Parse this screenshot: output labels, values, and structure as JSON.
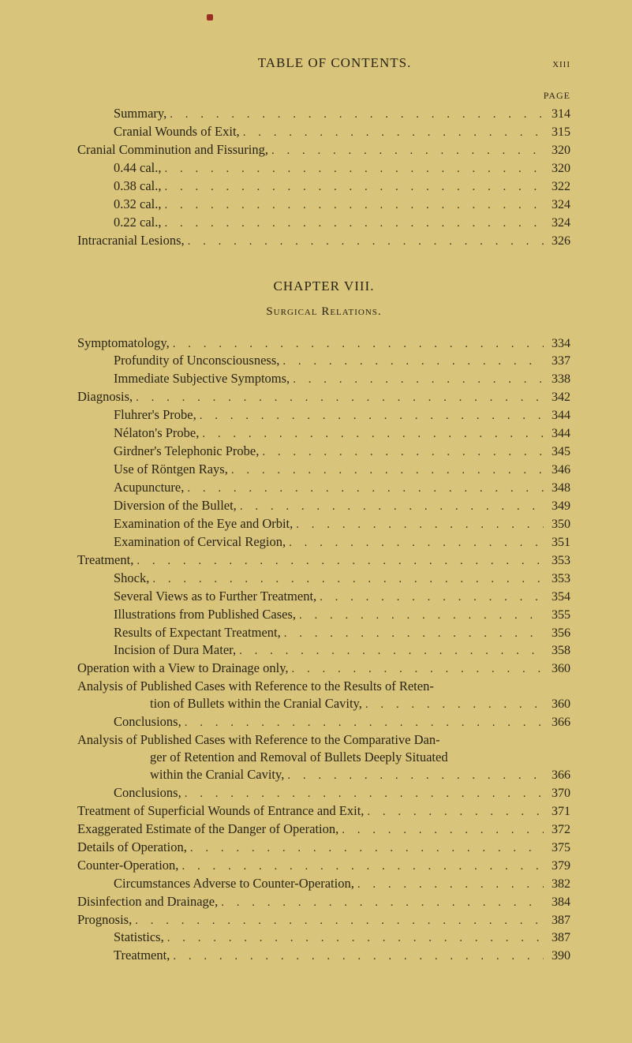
{
  "colors": {
    "page_bg": "#d8c47a",
    "text": "#2a2414",
    "dot": "#3a341f",
    "marker": "#9b2d25"
  },
  "typography": {
    "body_font": "Times New Roman",
    "body_size_pt": 12,
    "running_head_size_pt": 13,
    "chapter_head_size_pt": 13,
    "small_caps_size_pt": 11
  },
  "running_head": {
    "left": "TABLE OF CONTENTS.",
    "right": "xiii"
  },
  "page_label": "PAGE",
  "section_a": [
    {
      "indent": 1,
      "label": "Summary,",
      "page": "314"
    },
    {
      "indent": 1,
      "label": "Cranial Wounds of Exit,",
      "page": "315"
    },
    {
      "indent": 0,
      "label": "Cranial Comminution and Fissuring,",
      "page": "320"
    },
    {
      "indent": 1,
      "label": "0.44 cal.,",
      "page": "320"
    },
    {
      "indent": 1,
      "label": "0.38 cal.,",
      "page": "322"
    },
    {
      "indent": 1,
      "label": "0.32 cal.,",
      "page": "324"
    },
    {
      "indent": 1,
      "label": "0.22 cal.,",
      "page": "324"
    },
    {
      "indent": 0,
      "label": "Intracranial Lesions,",
      "page": "326"
    }
  ],
  "chapter": {
    "title": "CHAPTER VIII.",
    "subtitle": "Surgical Relations."
  },
  "section_b": [
    {
      "indent": 0,
      "label": "Symptomatology,",
      "page": "334"
    },
    {
      "indent": 1,
      "label": "Profundity of Unconsciousness,",
      "page": "337"
    },
    {
      "indent": 1,
      "label": "Immediate Subjective Symptoms,",
      "page": "338"
    },
    {
      "indent": 0,
      "label": "Diagnosis,",
      "page": "342"
    },
    {
      "indent": 1,
      "label": "Fluhrer's Probe,",
      "page": "344"
    },
    {
      "indent": 1,
      "label": "Nélaton's Probe,",
      "page": "344"
    },
    {
      "indent": 1,
      "label": "Girdner's Telephonic Probe,",
      "page": "345"
    },
    {
      "indent": 1,
      "label": "Use of Röntgen Rays,",
      "page": "346"
    },
    {
      "indent": 1,
      "label": "Acupuncture,",
      "page": "348"
    },
    {
      "indent": 1,
      "label": "Diversion of the Bullet,",
      "page": "349"
    },
    {
      "indent": 1,
      "label": "Examination of the Eye and Orbit,",
      "page": "350"
    },
    {
      "indent": 1,
      "label": "Examination of Cervical Region,",
      "page": "351"
    },
    {
      "indent": 0,
      "label": "Treatment,",
      "page": "353"
    },
    {
      "indent": 1,
      "label": "Shock,",
      "page": "353"
    },
    {
      "indent": 1,
      "label": "Several Views as to Further Treatment,",
      "page": "354"
    },
    {
      "indent": 1,
      "label": "Illustrations from Published Cases,",
      "page": "355"
    },
    {
      "indent": 1,
      "label": "Results of Expectant Treatment,",
      "page": "356"
    },
    {
      "indent": 1,
      "label": "Incision of Dura Mater,",
      "page": "358"
    },
    {
      "indent": 0,
      "label": "Operation with a View to Drainage only,",
      "page": "360"
    }
  ],
  "analysis_1": {
    "line1": "Analysis of Published Cases with Reference to the Results of Reten-",
    "line2_label": "tion of Bullets within the Cranial Cavity,",
    "line2_page": "360"
  },
  "section_c": [
    {
      "indent": 1,
      "label": "Conclusions,",
      "page": "366"
    }
  ],
  "analysis_2": {
    "line1": "Analysis of Published Cases with Reference to the Comparative Dan-",
    "line2": "ger of Retention and Removal of Bullets Deeply Situated",
    "line3_label": "within the Cranial Cavity,",
    "line3_page": "366"
  },
  "section_d": [
    {
      "indent": 1,
      "label": "Conclusions,",
      "page": "370"
    },
    {
      "indent": 0,
      "label": "Treatment of Superficial Wounds of Entrance and Exit,",
      "page": "371"
    },
    {
      "indent": 0,
      "label": "Exaggerated Estimate of the Danger of Operation,",
      "page": "372"
    },
    {
      "indent": 0,
      "label": "Details of Operation,",
      "page": "375"
    },
    {
      "indent": 0,
      "label": "Counter-Operation,",
      "page": "379"
    },
    {
      "indent": 1,
      "label": "Circumstances Adverse to Counter-Operation,",
      "page": "382"
    },
    {
      "indent": 0,
      "label": "Disinfection and Drainage,",
      "page": "384"
    },
    {
      "indent": 0,
      "label": "Prognosis,",
      "page": "387"
    },
    {
      "indent": 1,
      "label": "Statistics,",
      "page": "387"
    },
    {
      "indent": 1,
      "label": "Treatment,",
      "page": "390"
    }
  ]
}
